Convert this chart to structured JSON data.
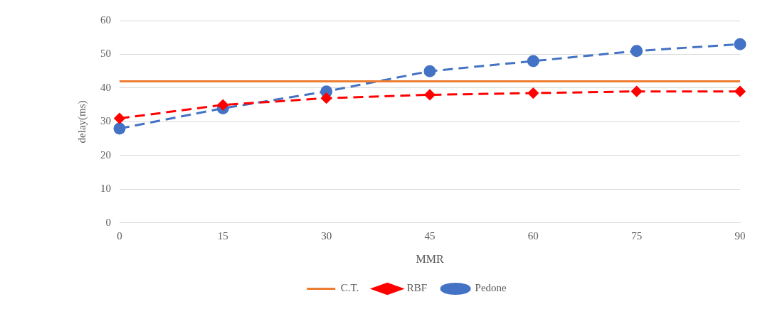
{
  "chart_data": {
    "type": "line",
    "xlabel": "MMR",
    "ylabel": "delay(ms)",
    "categories": [
      "0",
      "15",
      "30",
      "45",
      "60",
      "75",
      "90"
    ],
    "series": [
      {
        "name": "C.T.",
        "color": "#ed7d31",
        "marker": "none",
        "line_style": "solid",
        "values": [
          42,
          42,
          42,
          42,
          42,
          42,
          42
        ]
      },
      {
        "name": "RBF",
        "color": "#ff0000",
        "marker": "diamond",
        "line_style": "dashed",
        "values": [
          31,
          35,
          37,
          38,
          38.5,
          39,
          39
        ]
      },
      {
        "name": "Pedone",
        "color": "#4472c4",
        "marker": "circle",
        "line_style": "dashed",
        "values": [
          28,
          34,
          39,
          45,
          48,
          51,
          53
        ]
      }
    ],
    "ylim": [
      0,
      60
    ],
    "yticks": [
      0,
      10,
      20,
      30,
      40,
      50,
      60
    ],
    "grid": "y",
    "legend": "bottom"
  }
}
